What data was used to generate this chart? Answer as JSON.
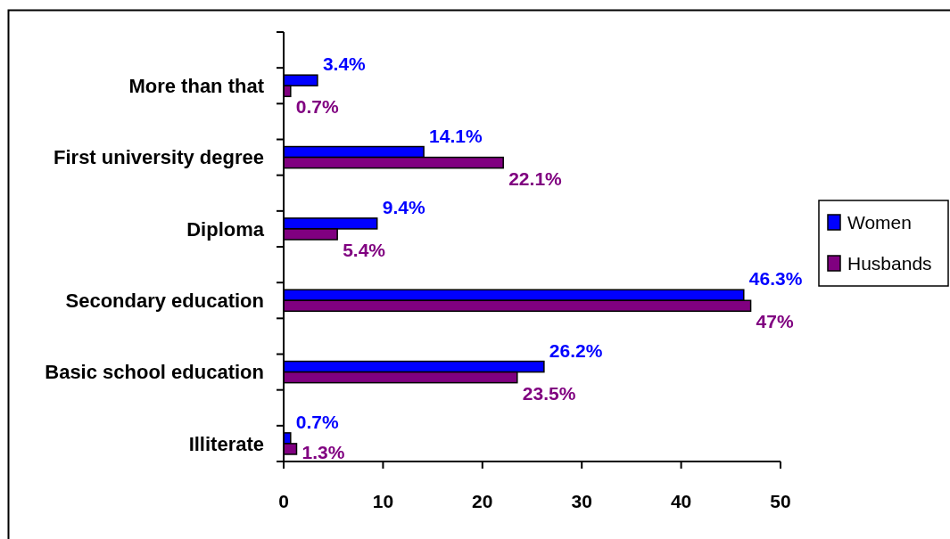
{
  "chart_data": {
    "type": "bar",
    "orientation": "horizontal",
    "categories": [
      null,
      "More than that",
      null,
      "First university degree",
      null,
      "Diploma",
      null,
      "Secondary education",
      null,
      "Basic school education",
      null,
      "Illiterate"
    ],
    "series": [
      {
        "name": "Women",
        "color": "#0000ff",
        "values": [
          null,
          3.4,
          null,
          14.1,
          null,
          9.4,
          null,
          46.3,
          null,
          26.2,
          null,
          0.7
        ],
        "value_labels": [
          null,
          "3.4%",
          null,
          "14.1%",
          null,
          "9.4%",
          null,
          "46.3%",
          null,
          "26.2%",
          null,
          "0.7%"
        ]
      },
      {
        "name": "Husbands",
        "color": "#800080",
        "values": [
          null,
          0.7,
          null,
          22.1,
          null,
          5.4,
          null,
          47,
          null,
          23.5,
          null,
          1.3
        ],
        "value_labels": [
          null,
          "0.7%",
          null,
          "22.1%",
          null,
          "5.4%",
          null,
          "47%",
          null,
          "23.5%",
          null,
          "1.3%"
        ]
      }
    ],
    "xlim": [
      0,
      50
    ],
    "xticks": [
      0,
      10,
      20,
      30,
      40,
      50
    ],
    "legend": "right"
  }
}
